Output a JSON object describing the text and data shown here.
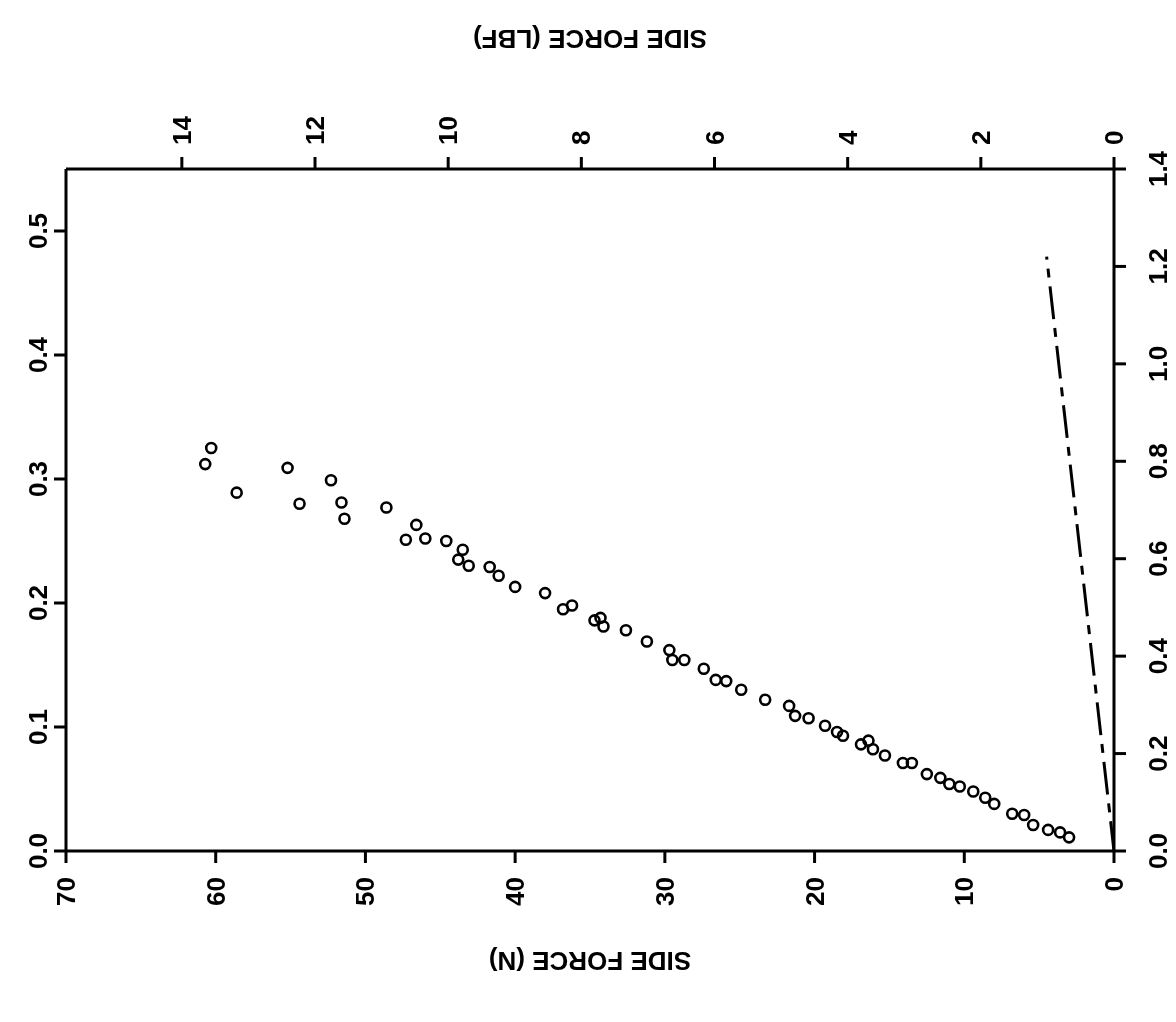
{
  "chart_data": {
    "type": "scatter",
    "xlabel": "SIDE FORCE (N)",
    "x2label": "SIDE FORCE (LBF)",
    "xlim": [
      70,
      0
    ],
    "xticks": [
      70,
      60,
      50,
      40,
      30,
      20,
      10,
      0
    ],
    "x2lim": [
      15.74,
      0
    ],
    "x2ticks": [
      14,
      12,
      10,
      8,
      6,
      4,
      2,
      0
    ],
    "ylim": [
      0,
      0.55
    ],
    "yticks": [
      {
        "value": 0,
        "label": "0.0"
      },
      {
        "value": 0.1,
        "label": "0.1"
      },
      {
        "value": 0.2,
        "label": "0.2"
      },
      {
        "value": 0.3,
        "label": "0.3"
      },
      {
        "value": 0.4,
        "label": "0.4"
      },
      {
        "value": 0.5,
        "label": "0.5"
      }
    ],
    "y2lim": [
      0,
      1.4
    ],
    "y2ticks": [
      {
        "value": 0,
        "label": "0.0"
      },
      {
        "value": 0.2,
        "label": "0.2"
      },
      {
        "value": 0.4,
        "label": "0.4"
      },
      {
        "value": 0.6,
        "label": "0.6"
      },
      {
        "value": 0.8,
        "label": "0.8"
      },
      {
        "value": 1.0,
        "label": "1.0"
      },
      {
        "value": 1.2,
        "label": "1.2"
      },
      {
        "value": 1.4,
        "label": "1.4"
      }
    ],
    "series": [
      {
        "type": "scatter",
        "color": "#000000",
        "marker": "circle",
        "x": [
          60.3,
          60.7,
          58.6,
          55.2,
          54.4,
          52.3,
          51.6,
          51.4,
          48.6,
          46.6,
          47.3,
          46.0,
          44.6,
          43.5,
          43.8,
          43.1,
          41.7,
          41.1,
          40.0,
          38.0,
          36.8,
          36.2,
          34.7,
          34.3,
          34.1,
          32.6,
          31.2,
          29.7,
          29.5,
          28.7,
          27.4,
          26.6,
          25.9,
          24.9,
          23.3,
          21.7,
          21.3,
          20.4,
          19.3,
          18.5,
          18.1,
          16.9,
          16.4,
          16.1,
          15.3,
          14.1,
          13.5,
          12.5,
          11.6,
          11.0,
          10.3,
          9.4,
          8.6,
          8.0,
          6.8,
          6.0,
          5.4,
          4.4,
          3.6,
          3.0
        ],
        "values": [
          0.325,
          0.312,
          0.289,
          0.309,
          0.28,
          0.299,
          0.281,
          0.268,
          0.277,
          0.263,
          0.251,
          0.252,
          0.25,
          0.243,
          0.235,
          0.23,
          0.229,
          0.222,
          0.213,
          0.208,
          0.195,
          0.198,
          0.186,
          0.188,
          0.181,
          0.178,
          0.169,
          0.162,
          0.154,
          0.154,
          0.147,
          0.138,
          0.137,
          0.13,
          0.122,
          0.117,
          0.109,
          0.107,
          0.101,
          0.096,
          0.093,
          0.086,
          0.089,
          0.082,
          0.077,
          0.071,
          0.071,
          0.062,
          0.059,
          0.054,
          0.052,
          0.048,
          0.043,
          0.038,
          0.03,
          0.029,
          0.021,
          0.017,
          0.015,
          0.011
        ]
      },
      {
        "type": "line",
        "axis": "y2",
        "color": "#000000",
        "marker": "none",
        "line_style": "dashed",
        "x": [
          0,
          4.5
        ],
        "values": [
          0,
          1.22
        ]
      }
    ]
  }
}
